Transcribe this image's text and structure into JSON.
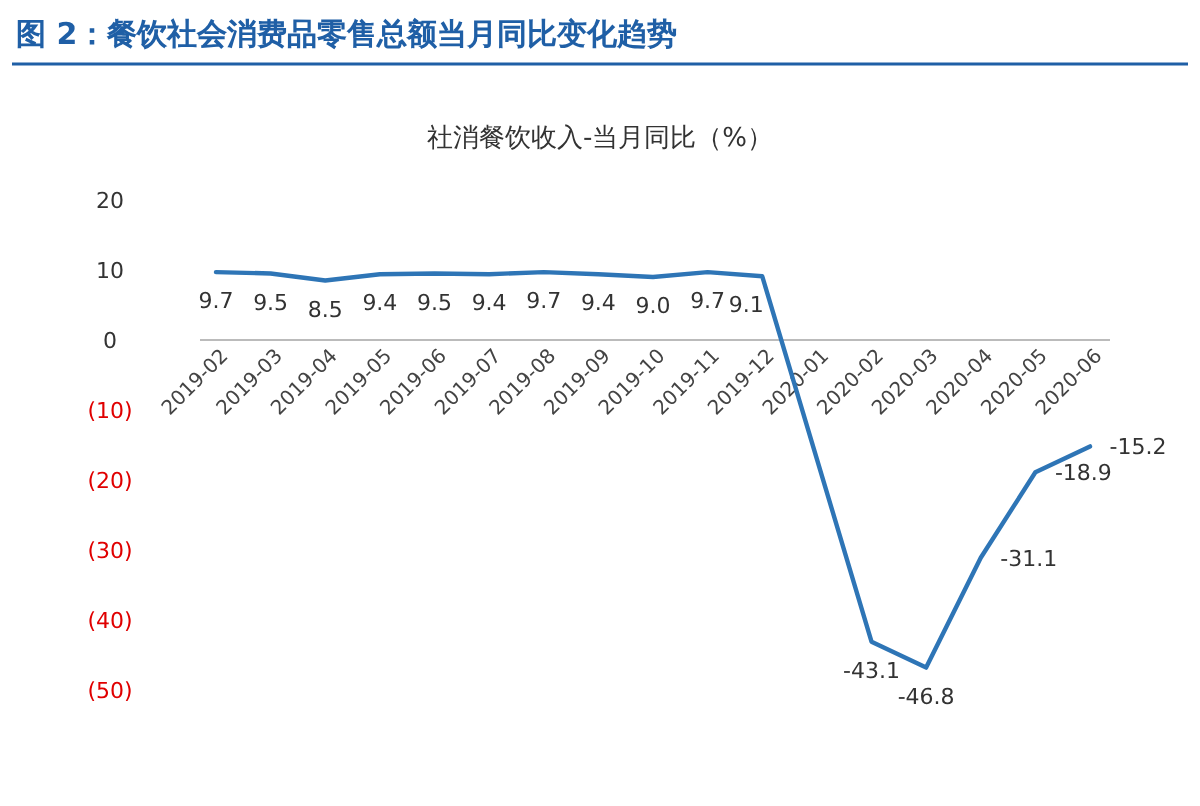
{
  "chart_data": {
    "type": "line",
    "title": "社消餐饮收入-当月同比（%）",
    "subtitle": "图 2：餐饮社会消费品零售总额当月同比变化趋势",
    "categories": [
      "2019-02",
      "2019-03",
      "2019-04",
      "2019-05",
      "2019-06",
      "2019-07",
      "2019-08",
      "2019-09",
      "2019-10",
      "2019-11",
      "2019-12",
      "2020-01",
      "2020-02",
      "2020-03",
      "2020-04",
      "2020-05",
      "2020-06"
    ],
    "series": [
      {
        "color": "#2e75b6",
        "values": [
          9.7,
          9.5,
          8.5,
          9.4,
          9.5,
          9.4,
          9.7,
          9.4,
          9.0,
          9.7,
          9.1,
          null,
          -43.1,
          -46.8,
          -31.1,
          -18.9,
          -15.2
        ],
        "value_labels": [
          "9.7",
          "9.5",
          "8.5",
          "9.4",
          "9.5",
          "9.4",
          "9.7",
          "9.4",
          "9.0",
          "9.7",
          "9.1",
          null,
          "-43.1",
          "-46.8",
          "-31.1",
          "-18.9",
          "-15.2"
        ]
      }
    ],
    "ylim": [
      -50,
      20
    ],
    "yticks": [
      20,
      10,
      0,
      {
        "value": -10,
        "label": "(10)"
      },
      {
        "value": -20,
        "label": "(20)"
      },
      {
        "value": -30,
        "label": "(30)"
      },
      {
        "value": -40,
        "label": "(40)"
      },
      {
        "value": -50,
        "label": "(50)"
      }
    ],
    "grid": false,
    "marker": "none",
    "line_style": "solid"
  }
}
